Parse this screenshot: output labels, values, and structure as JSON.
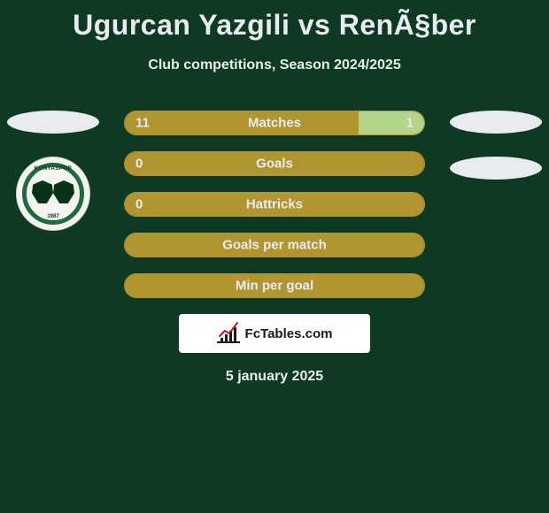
{
  "title": "Ugurcan Yazgili vs RenÃ§ber",
  "subtitle": "Club competitions, Season 2024/2025",
  "date": "5 january 2025",
  "branding": "FcTables.com",
  "colors": {
    "background": "#0e3a24",
    "text": "#e8ecef",
    "player1_fill": "#b1962f",
    "player2_fill": "#b2d48b",
    "bar_border": "#b1962f",
    "badge_ring": "#1e6b3e",
    "badge_bg": "#f3f3f0",
    "brand_bg": "#ffffff"
  },
  "player1_badge": {
    "name": "KONYASPOR",
    "year": "1987"
  },
  "rows": [
    {
      "label": "Matches",
      "left": "11",
      "right": "1",
      "left_pct": 78,
      "right_pct": 22,
      "show_right": true,
      "show_left": true
    },
    {
      "label": "Goals",
      "left": "0",
      "right": "",
      "left_pct": 100,
      "right_pct": 0,
      "show_right": false,
      "show_left": true
    },
    {
      "label": "Hattricks",
      "left": "0",
      "right": "",
      "left_pct": 100,
      "right_pct": 0,
      "show_right": false,
      "show_left": true
    },
    {
      "label": "Goals per match",
      "left": "",
      "right": "",
      "left_pct": 100,
      "right_pct": 0,
      "show_right": false,
      "show_left": false
    },
    {
      "label": "Min per goal",
      "left": "",
      "right": "",
      "left_pct": 100,
      "right_pct": 0,
      "show_right": false,
      "show_left": false
    }
  ]
}
